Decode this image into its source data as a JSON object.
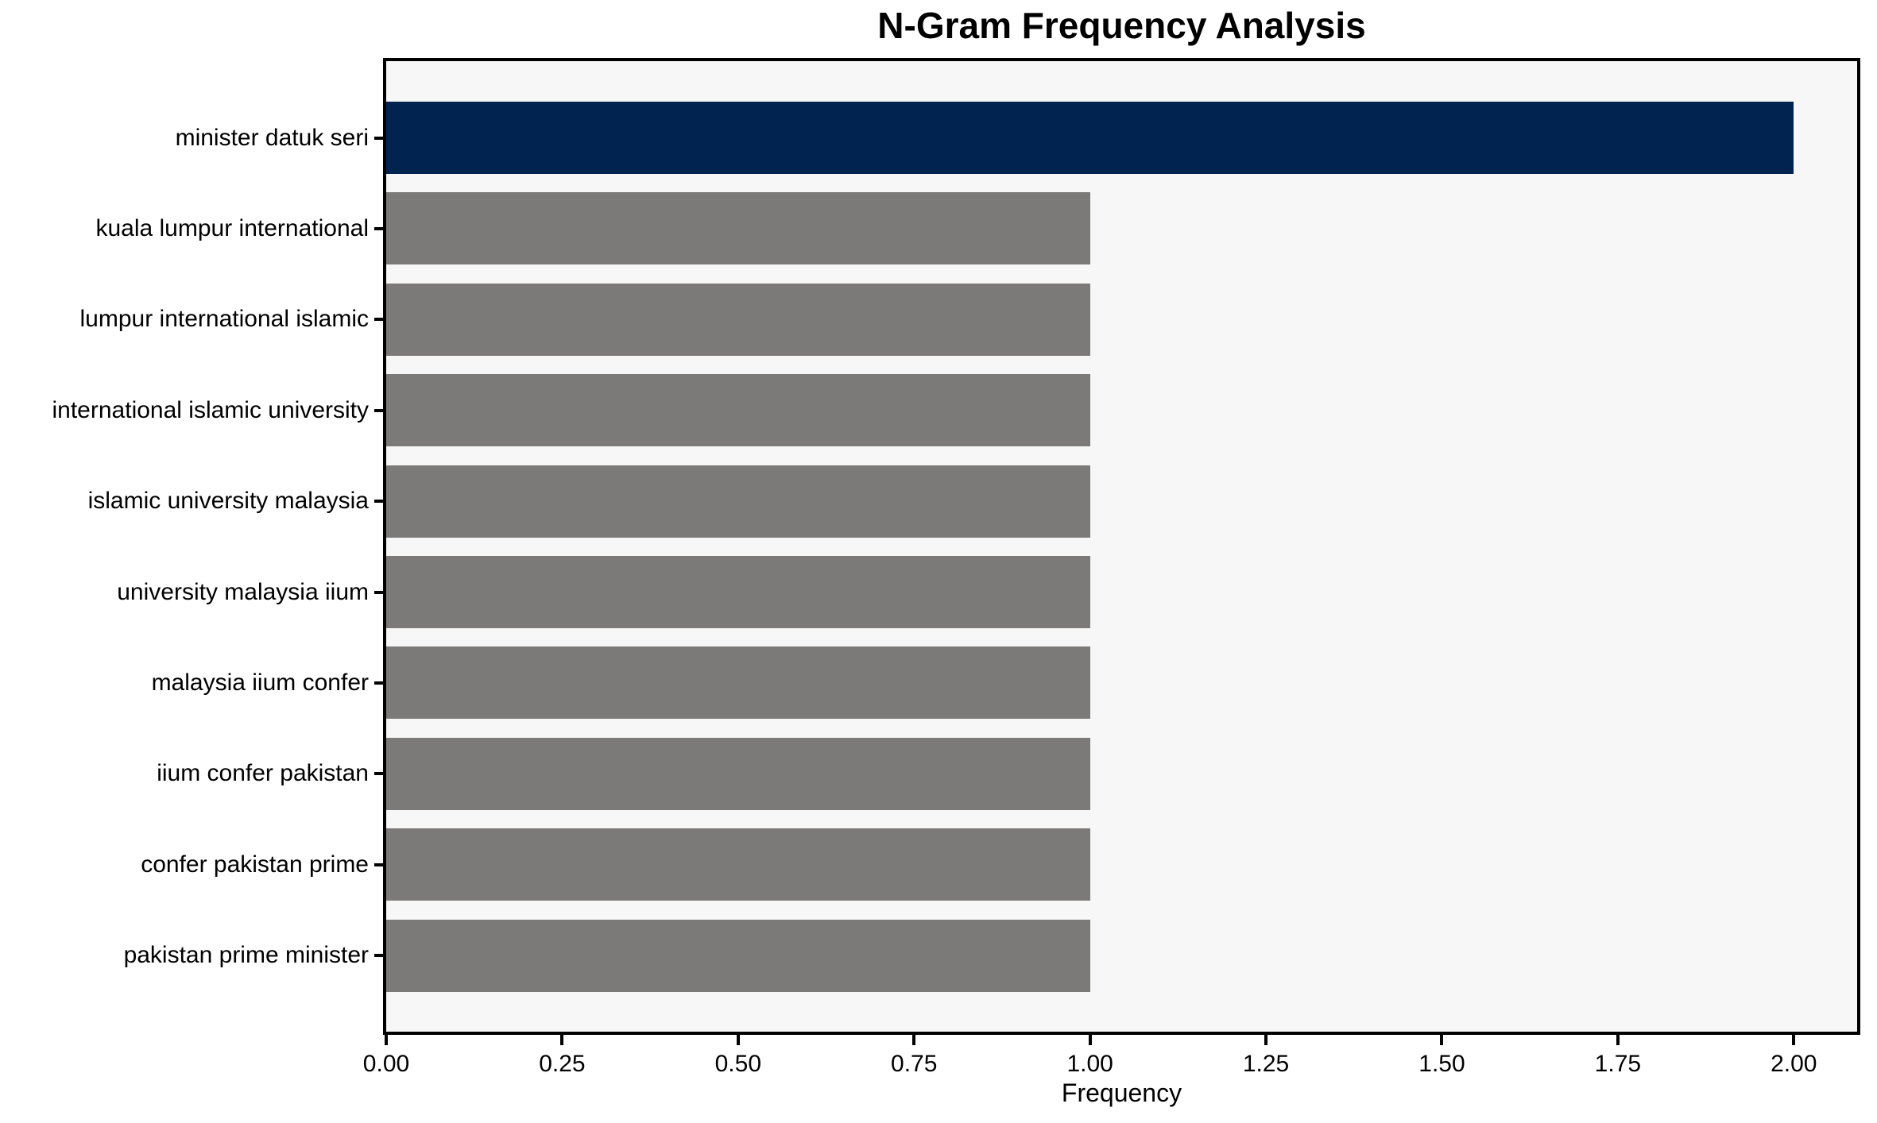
{
  "chart_data": {
    "type": "bar",
    "orientation": "horizontal",
    "title": "N-Gram Frequency Analysis",
    "xlabel": "Frequency",
    "ylabel": "",
    "categories": [
      "minister datuk seri",
      "kuala lumpur international",
      "lumpur international islamic",
      "international islamic university",
      "islamic university malaysia",
      "university malaysia iium",
      "malaysia iium confer",
      "iium confer pakistan",
      "confer pakistan prime",
      "pakistan prime minister"
    ],
    "values": [
      2,
      1,
      1,
      1,
      1,
      1,
      1,
      1,
      1,
      1
    ],
    "highlight_index": 0,
    "xticks": [
      0,
      0.25,
      0.5,
      0.75,
      1.0,
      1.25,
      1.5,
      1.75,
      2.0
    ],
    "xtick_labels": [
      "0.00",
      "0.25",
      "0.50",
      "0.75",
      "1.00",
      "1.25",
      "1.50",
      "1.75",
      "2.00"
    ],
    "xlim": [
      0,
      2.09
    ],
    "grid": false,
    "legend": "none",
    "colors": {
      "bar_highlight": "#00234f",
      "bar_default": "#7b7a78",
      "plot_background": "#f7f7f7",
      "figure_background": "#ffffff",
      "spine": "#000000",
      "text": "#000000"
    }
  }
}
